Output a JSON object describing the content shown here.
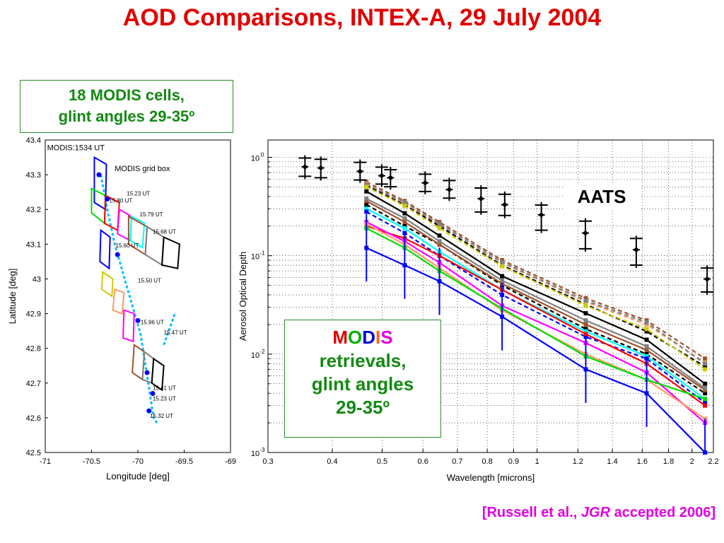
{
  "title": "AOD Comparisons, INTEX-A, 29 July 2004",
  "cells_box": {
    "line1": "18 MODIS cells,",
    "line2": "glint angles 29-35º"
  },
  "retrievals_box": {
    "modis_letters": [
      {
        "ch": "M",
        "color": "#e00000"
      },
      {
        "ch": "O",
        "color": "#00b000"
      },
      {
        "ch": "D",
        "color": "#0000e0"
      },
      {
        "ch": "I",
        "color": "#ff6020"
      },
      {
        "ch": "S",
        "color": "#e000e0"
      }
    ],
    "line2": "retrievals,",
    "line3": "glint angles",
    "line4": "29-35º"
  },
  "aats_label": "AATS",
  "citation": {
    "prefix": "[Russell et al., ",
    "journal": "JGR",
    "suffix": " accepted 2006]"
  },
  "chart_data": [
    {
      "type": "map",
      "xlabel": "Longitude [deg]",
      "ylabel": "Latitude [deg]",
      "xlim": [
        -71,
        -69
      ],
      "ylim": [
        42.5,
        43.4
      ],
      "xticks": [
        "-71",
        "-70.5",
        "-70",
        "-69.5",
        "-69"
      ],
      "yticks": [
        "42.5",
        "42.6",
        "42.7",
        "42.8",
        "42.9",
        "43",
        "43.1",
        "43.2",
        "43.3",
        "43.4"
      ],
      "annotations": [
        {
          "text": "MODIS:1534 UT",
          "lon": -70.98,
          "lat": 43.37
        },
        {
          "text": "MODIS grid box",
          "lon": -70.25,
          "lat": 43.31
        },
        {
          "text": "15.23 UT",
          "lon": -70.12,
          "lat": 43.24
        },
        {
          "text": "15.80 UT",
          "lon": -70.31,
          "lat": 43.22
        },
        {
          "text": "15.79 UT",
          "lon": -69.98,
          "lat": 43.18
        },
        {
          "text": "15.68 UT",
          "lon": -69.84,
          "lat": 43.13
        },
        {
          "text": "15.60 UT",
          "lon": -70.24,
          "lat": 43.09
        },
        {
          "text": "15.50 UT",
          "lon": -70.0,
          "lat": 42.99
        },
        {
          "text": "15.96 UT",
          "lon": -69.97,
          "lat": 42.87
        },
        {
          "text": "15.47 UT",
          "lon": -69.72,
          "lat": 42.84
        },
        {
          "text": "15.41 UT",
          "lon": -69.84,
          "lat": 42.68
        },
        {
          "text": "15.23 UT",
          "lon": -69.84,
          "lat": 42.65
        },
        {
          "text": "15.32 UT",
          "lon": -69.87,
          "lat": 42.6
        }
      ],
      "grid_boxes": [
        {
          "color": "#0000ff",
          "corners": [
            [
              -70.47,
              43.35
            ],
            [
              -70.34,
              43.33
            ],
            [
              -70.35,
              43.2
            ],
            [
              -70.47,
              43.22
            ]
          ]
        },
        {
          "color": "#00dd00",
          "corners": [
            [
              -70.5,
              43.26
            ],
            [
              -70.35,
              43.24
            ],
            [
              -70.36,
              43.16
            ],
            [
              -70.5,
              43.19
            ]
          ]
        },
        {
          "color": "#ff0000",
          "corners": [
            [
              -70.35,
              43.24
            ],
            [
              -70.2,
              43.22
            ],
            [
              -70.22,
              43.14
            ],
            [
              -70.36,
              43.16
            ]
          ]
        },
        {
          "color": "#ff00ff",
          "corners": [
            [
              -70.2,
              43.2
            ],
            [
              -70.07,
              43.18
            ],
            [
              -70.08,
              43.11
            ],
            [
              -70.22,
              43.13
            ]
          ]
        },
        {
          "color": "#00ffff",
          "corners": [
            [
              -70.07,
              43.18
            ],
            [
              -69.93,
              43.16
            ],
            [
              -69.95,
              43.09
            ],
            [
              -70.08,
              43.11
            ]
          ]
        },
        {
          "color": "#a0522d",
          "corners": [
            [
              -70.1,
              43.18
            ],
            [
              -69.9,
              43.15
            ],
            [
              -69.92,
              43.07
            ],
            [
              -70.1,
              43.1
            ]
          ]
        },
        {
          "color": "#808080",
          "corners": [
            [
              -69.9,
              43.15
            ],
            [
              -69.72,
              43.12
            ],
            [
              -69.74,
              43.04
            ],
            [
              -69.92,
              43.07
            ]
          ]
        },
        {
          "color": "#000000",
          "corners": [
            [
              -69.72,
              43.12
            ],
            [
              -69.55,
              43.1
            ],
            [
              -69.57,
              43.03
            ],
            [
              -69.74,
              43.04
            ]
          ]
        },
        {
          "color": "#0000ff",
          "corners": [
            [
              -70.4,
              43.14
            ],
            [
              -70.3,
              43.12
            ],
            [
              -70.31,
              43.03
            ],
            [
              -70.41,
              43.05
            ]
          ]
        },
        {
          "color": "#cccc00",
          "corners": [
            [
              -70.38,
              43.02
            ],
            [
              -70.27,
              43.0
            ],
            [
              -70.28,
              42.95
            ],
            [
              -70.39,
              42.97
            ]
          ]
        },
        {
          "color": "#ff9966",
          "corners": [
            [
              -70.25,
              42.97
            ],
            [
              -70.15,
              42.96
            ],
            [
              -70.17,
              42.9
            ],
            [
              -70.27,
              42.91
            ]
          ]
        },
        {
          "color": "#ff00ff",
          "corners": [
            [
              -70.15,
              42.91
            ],
            [
              -70.04,
              42.9
            ],
            [
              -70.05,
              42.82
            ],
            [
              -70.16,
              42.83
            ]
          ]
        },
        {
          "color": "#a0522d",
          "corners": [
            [
              -70.04,
              42.81
            ],
            [
              -69.93,
              42.79
            ],
            [
              -69.95,
              42.71
            ],
            [
              -70.06,
              42.73
            ]
          ]
        },
        {
          "color": "#808080",
          "corners": [
            [
              -69.93,
              42.79
            ],
            [
              -69.83,
              42.77
            ],
            [
              -69.85,
              42.7
            ],
            [
              -69.95,
              42.71
            ]
          ]
        },
        {
          "color": "#000000",
          "corners": [
            [
              -69.83,
              42.77
            ],
            [
              -69.72,
              42.75
            ],
            [
              -69.74,
              42.68
            ],
            [
              -69.85,
              42.7
            ]
          ]
        }
      ],
      "track": {
        "color": "#00bfff",
        "points": [
          [
            -70.4,
            43.3
          ],
          [
            -70.33,
            43.2
          ],
          [
            -70.25,
            43.1
          ],
          [
            -70.1,
            42.96
          ],
          [
            -69.97,
            42.84
          ],
          [
            -69.9,
            42.72
          ],
          [
            -69.83,
            42.6
          ],
          [
            -69.78,
            42.58
          ]
        ],
        "extra": [
          [
            -69.72,
            42.81
          ],
          [
            -69.6,
            42.9
          ]
        ]
      },
      "dots": [
        [
          -70.42,
          43.3
        ],
        [
          -70.33,
          43.23
        ],
        [
          -70.22,
          43.07
        ],
        [
          -70.0,
          42.88
        ],
        [
          -69.9,
          42.73
        ],
        [
          -69.84,
          42.67
        ],
        [
          -69.88,
          42.62
        ]
      ]
    },
    {
      "type": "line",
      "xlabel": "Wavelength [microns]",
      "ylabel": "Aerosol Optical Depth",
      "x_scale": "log",
      "y_scale": "log",
      "xlim": [
        0.3,
        2.2
      ],
      "ylim": [
        0.001,
        1.5
      ],
      "xticks": [
        0.3,
        0.4,
        0.5,
        0.6,
        0.7,
        0.8,
        0.9,
        1,
        1.2,
        1.4,
        1.6,
        1.8,
        2,
        2.2
      ],
      "xtick_labels": [
        "0.3",
        "0.4",
        "0.5",
        "0.6",
        "0.7",
        "0.8",
        "0.9",
        "1",
        "1.2",
        "1.4",
        "1.6",
        "1.8",
        "2",
        "2.2"
      ],
      "yticks": [
        0.001,
        0.01,
        0.1,
        1
      ],
      "ytick_labels": [
        [
          "10",
          "-3"
        ],
        [
          "10",
          "-2"
        ],
        [
          "10",
          "-1"
        ],
        [
          "10",
          "0"
        ]
      ],
      "grid": true,
      "modis_wavelengths": [
        0.466,
        0.553,
        0.646,
        0.855,
        1.243,
        1.632,
        2.119
      ],
      "series": [
        {
          "color": "#000000",
          "dash": "6,4",
          "values": [
            0.52,
            0.33,
            0.2,
            0.08,
            0.032,
            0.017,
            0.0075
          ]
        },
        {
          "color": "#a0522d",
          "dash": "6,4",
          "values": [
            0.56,
            0.36,
            0.22,
            0.09,
            0.037,
            0.022,
            0.009
          ]
        },
        {
          "color": "#ff9966",
          "dash": "6,4",
          "values": [
            0.54,
            0.34,
            0.21,
            0.085,
            0.034,
            0.02,
            0.0082
          ]
        },
        {
          "color": "#808080",
          "dash": "6,4",
          "values": [
            0.53,
            0.35,
            0.21,
            0.086,
            0.035,
            0.021,
            0.008
          ]
        },
        {
          "color": "#cccc00",
          "dash": "6,4",
          "values": [
            0.5,
            0.32,
            0.19,
            0.078,
            0.031,
            0.018,
            0.007
          ]
        },
        {
          "color": "#000000",
          "dash": "",
          "values": [
            0.45,
            0.27,
            0.16,
            0.062,
            0.026,
            0.014,
            0.005
          ]
        },
        {
          "color": "#000000",
          "dash": "6,4",
          "values": [
            0.33,
            0.2,
            0.13,
            0.05,
            0.018,
            0.01,
            0.004
          ]
        },
        {
          "color": "#a0522d",
          "dash": "",
          "values": [
            0.36,
            0.22,
            0.13,
            0.052,
            0.02,
            0.011,
            0.0043
          ]
        },
        {
          "color": "#808080",
          "dash": "",
          "values": [
            0.38,
            0.24,
            0.14,
            0.056,
            0.022,
            0.012,
            0.0045
          ]
        },
        {
          "color": "#00ffff",
          "dash": "",
          "values": [
            0.3,
            0.19,
            0.11,
            0.045,
            0.017,
            0.0095,
            0.0035
          ]
        },
        {
          "color": "#0000ff",
          "dash": "6,4",
          "values": [
            0.28,
            0.17,
            0.1,
            0.04,
            0.015,
            0.009,
            0.0032
          ]
        },
        {
          "color": "#ff0000",
          "dash": "",
          "values": [
            0.2,
            0.15,
            0.1,
            0.045,
            0.016,
            0.008,
            0.003
          ]
        },
        {
          "color": "#ff00ff",
          "dash": "",
          "values": [
            0.22,
            0.14,
            0.085,
            0.031,
            0.013,
            0.0065,
            0.002
          ]
        },
        {
          "color": "#ff9966",
          "dash": "",
          "values": [
            0.21,
            0.13,
            0.075,
            0.028,
            0.01,
            0.0055,
            0.0022
          ]
        },
        {
          "color": "#00dd00",
          "dash": "",
          "values": [
            0.19,
            0.12,
            0.07,
            0.029,
            0.0095,
            0.0055,
            0.0035
          ]
        },
        {
          "color": "#0000ff",
          "dash": "",
          "values": [
            0.12,
            0.08,
            0.055,
            0.024,
            0.007,
            0.004,
            0.001
          ]
        }
      ],
      "aats": {
        "color": "#000000",
        "points": [
          {
            "x": 0.354,
            "y": 0.8,
            "lo": 0.6,
            "hi": 1.05
          },
          {
            "x": 0.38,
            "y": 0.78,
            "lo": 0.58,
            "hi": 1.02
          },
          {
            "x": 0.453,
            "y": 0.72,
            "lo": 0.55,
            "hi": 0.95
          },
          {
            "x": 0.499,
            "y": 0.65,
            "lo": 0.5,
            "hi": 0.85
          },
          {
            "x": 0.519,
            "y": 0.62,
            "lo": 0.47,
            "hi": 0.8
          },
          {
            "x": 0.606,
            "y": 0.55,
            "lo": 0.42,
            "hi": 0.72
          },
          {
            "x": 0.675,
            "y": 0.47,
            "lo": 0.36,
            "hi": 0.62
          },
          {
            "x": 0.778,
            "y": 0.38,
            "lo": 0.26,
            "hi": 0.52
          },
          {
            "x": 0.865,
            "y": 0.33,
            "lo": 0.24,
            "hi": 0.45
          },
          {
            "x": 1.019,
            "y": 0.26,
            "lo": 0.17,
            "hi": 0.35
          },
          {
            "x": 1.241,
            "y": 0.17,
            "lo": 0.11,
            "hi": 0.24
          },
          {
            "x": 1.558,
            "y": 0.115,
            "lo": 0.075,
            "hi": 0.16
          },
          {
            "x": 2.139,
            "y": 0.058,
            "lo": 0.04,
            "hi": 0.08
          }
        ]
      }
    }
  ]
}
